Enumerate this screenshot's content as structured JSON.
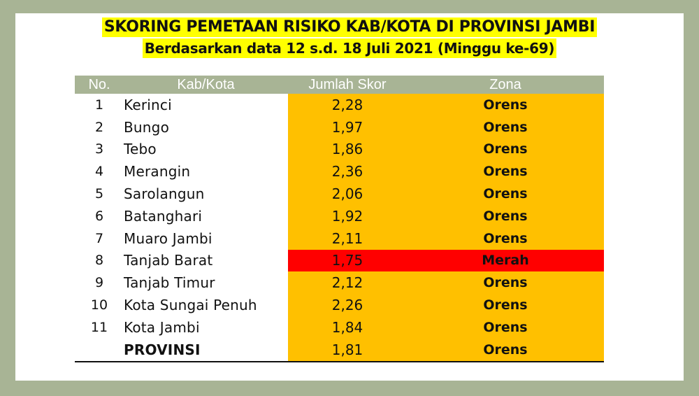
{
  "title": "SKORING PEMETAAN RISIKO KAB/KOTA DI PROVINSI JAMBI",
  "subtitle": "Berdasarkan data 12 s.d. 18 Juli 2021 (Minggu ke-69)",
  "colors": {
    "header_bg": "#a8b495",
    "orange_zone": "#ffc000",
    "red_zone": "#ff0000",
    "title_highlight": "#ffff00"
  },
  "table": {
    "headers": [
      "No.",
      "Kab/Kota",
      "Jumlah Skor",
      "Zona"
    ],
    "rows": [
      {
        "no": "1",
        "name": "Kerinci",
        "score": "2,28",
        "zone": "Orens"
      },
      {
        "no": "2",
        "name": "Bungo",
        "score": "1,97",
        "zone": "Orens"
      },
      {
        "no": "3",
        "name": "Tebo",
        "score": "1,86",
        "zone": "Orens"
      },
      {
        "no": "4",
        "name": "Merangin",
        "score": "2,36",
        "zone": "Orens"
      },
      {
        "no": "5",
        "name": "Sarolangun",
        "score": "2,06",
        "zone": "Orens"
      },
      {
        "no": "6",
        "name": "Batanghari",
        "score": "1,92",
        "zone": "Orens"
      },
      {
        "no": "7",
        "name": "Muaro Jambi",
        "score": "2,11",
        "zone": "Orens"
      },
      {
        "no": "8",
        "name": "Tanjab Barat",
        "score": "1,75",
        "zone": "Merah"
      },
      {
        "no": "9",
        "name": "Tanjab Timur",
        "score": "2,12",
        "zone": "Orens"
      },
      {
        "no": "10",
        "name": "Kota Sungai Penuh",
        "score": "2,26",
        "zone": "Orens"
      },
      {
        "no": "11",
        "name": "Kota Jambi",
        "score": "1,84",
        "zone": "Orens"
      }
    ],
    "total": {
      "no": "",
      "name": "PROVINSI",
      "score": "1,81",
      "zone": "Orens"
    }
  }
}
